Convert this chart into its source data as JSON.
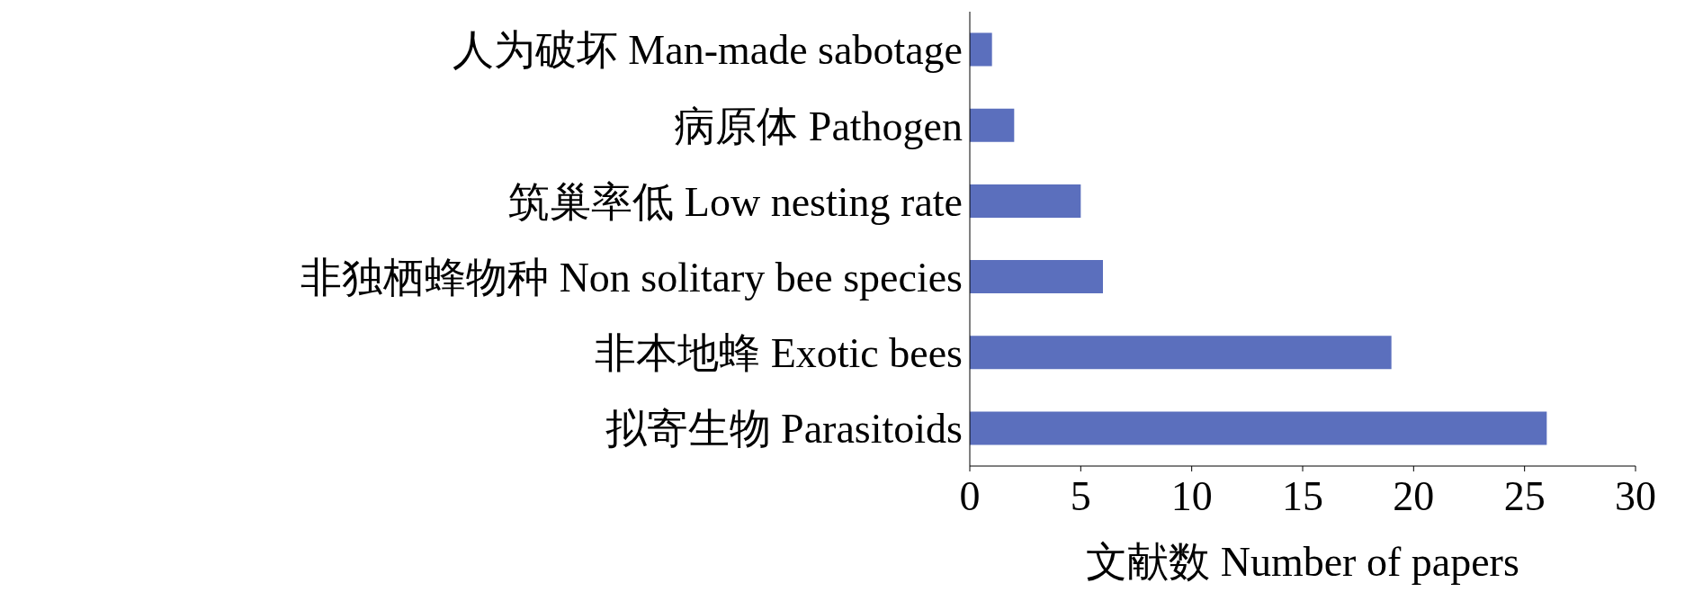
{
  "chart_data": {
    "type": "bar",
    "orientation": "horizontal",
    "xlabel": "文献数 Number of papers",
    "categories": [
      "人为破坏 Man-made sabotage",
      "病原体 Pathogen",
      "筑巢率低 Low nesting rate",
      "非独栖蜂物种 Non solitary bee species",
      "非本地蜂 Exotic bees",
      "拟寄生物 Parasitoids"
    ],
    "values": [
      1,
      2,
      5,
      6,
      19,
      26
    ],
    "color": "#5b6fbd",
    "xlim": [
      0,
      30
    ],
    "xticks": [
      0,
      5,
      10,
      15,
      20,
      25,
      30
    ],
    "grid": false,
    "legend": false
  }
}
